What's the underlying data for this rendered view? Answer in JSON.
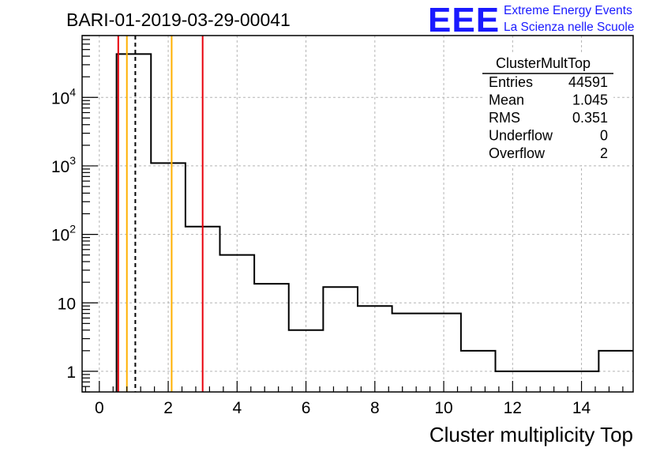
{
  "chart_data": {
    "type": "histogram",
    "title": "BARI-01-2019-03-29-00041",
    "xlabel": "Cluster multiplicity Top",
    "ylabel": "",
    "xlim": [
      -0.5,
      15.5
    ],
    "ylim": [
      0.5,
      80000
    ],
    "yscale": "log",
    "grid": true,
    "x_ticks": [
      0,
      2,
      4,
      6,
      8,
      10,
      12,
      14
    ],
    "x_tick_labels": [
      "0",
      "2",
      "4",
      "6",
      "8",
      "10",
      "12",
      "14"
    ],
    "y_ticks": [
      1,
      10,
      100,
      1000,
      10000
    ],
    "y_tick_labels": [
      {
        "base": "1",
        "exp": ""
      },
      {
        "base": "10",
        "exp": ""
      },
      {
        "base": "10",
        "exp": "2"
      },
      {
        "base": "10",
        "exp": "3"
      },
      {
        "base": "10",
        "exp": "4"
      }
    ],
    "bins": [
      {
        "lo": 0.5,
        "hi": 1.5,
        "count": 43000
      },
      {
        "lo": 1.5,
        "hi": 2.5,
        "count": 1100
      },
      {
        "lo": 2.5,
        "hi": 3.5,
        "count": 130
      },
      {
        "lo": 3.5,
        "hi": 4.5,
        "count": 50
      },
      {
        "lo": 4.5,
        "hi": 5.5,
        "count": 19
      },
      {
        "lo": 5.5,
        "hi": 6.5,
        "count": 4
      },
      {
        "lo": 6.5,
        "hi": 7.5,
        "count": 17
      },
      {
        "lo": 7.5,
        "hi": 8.5,
        "count": 9
      },
      {
        "lo": 8.5,
        "hi": 10.5,
        "count": 7
      },
      {
        "lo": 10.5,
        "hi": 11.5,
        "count": 2
      },
      {
        "lo": 11.5,
        "hi": 14.5,
        "count": 1
      },
      {
        "lo": 14.5,
        "hi": 15.5,
        "count": 2
      }
    ],
    "vertical_lines": [
      {
        "x": 0.55,
        "color": "#e8000b",
        "style": "solid"
      },
      {
        "x": 0.8,
        "color": "#ffb000",
        "style": "solid"
      },
      {
        "x": 1.045,
        "color": "#000000",
        "style": "dashed"
      },
      {
        "x": 2.1,
        "color": "#ffb000",
        "style": "solid"
      },
      {
        "x": 3.0,
        "color": "#e8000b",
        "style": "solid"
      }
    ],
    "stats_box": {
      "name": "ClusterMultTop",
      "rows": [
        {
          "label": "Entries",
          "value": "44591"
        },
        {
          "label": "Mean",
          "value": "1.045"
        },
        {
          "label": "RMS",
          "value": "0.351"
        },
        {
          "label": "Underflow",
          "value": "0"
        },
        {
          "label": "Overflow",
          "value": "2"
        }
      ]
    }
  },
  "logo": {
    "mark": "EEE",
    "line1": "Extreme Energy Events",
    "line2": "La Scienza nelle Scuole",
    "color": "#1a1aff"
  }
}
